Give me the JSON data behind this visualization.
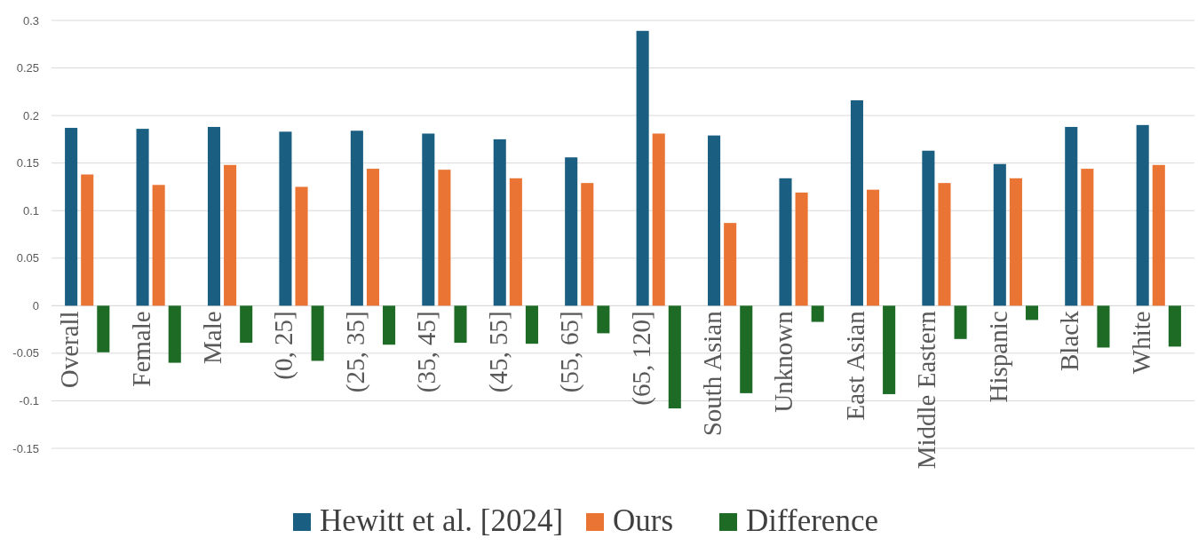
{
  "chart_data": {
    "type": "bar",
    "categories": [
      "Overall",
      "Female",
      "Male",
      "(0, 25]",
      "(25, 35]",
      "(35, 45]",
      "(45, 55]",
      "(55, 65]",
      "(65, 120]",
      "South Asian",
      "Unknown",
      "East Asian",
      "Middle Eastern",
      "Hispanic",
      "Black",
      "White"
    ],
    "series": [
      {
        "name": "Hewitt et al. [2024]",
        "color": "#1a5f82",
        "values": [
          0.187,
          0.186,
          0.188,
          0.183,
          0.184,
          0.181,
          0.175,
          0.156,
          0.289,
          0.179,
          0.134,
          0.216,
          0.163,
          0.149,
          0.188,
          0.19
        ]
      },
      {
        "name": "Ours",
        "color": "#e97434",
        "values": [
          0.138,
          0.127,
          0.148,
          0.125,
          0.144,
          0.143,
          0.134,
          0.129,
          0.181,
          0.087,
          0.119,
          0.122,
          0.129,
          0.134,
          0.144,
          0.148
        ]
      },
      {
        "name": "Difference",
        "color": "#1e6b26",
        "values": [
          -0.049,
          -0.06,
          -0.039,
          -0.058,
          -0.041,
          -0.039,
          -0.04,
          -0.029,
          -0.108,
          -0.092,
          -0.017,
          -0.093,
          -0.035,
          -0.015,
          -0.044,
          -0.043
        ]
      }
    ],
    "ylim": [
      -0.15,
      0.3
    ],
    "yticks": [
      {
        "value": -0.15,
        "label": "-0.15"
      },
      {
        "value": -0.1,
        "label": "-0.1"
      },
      {
        "value": -0.05,
        "label": "-0.05"
      },
      0,
      0.05,
      0.1,
      0.15,
      0.2,
      0.25,
      0.3
    ],
    "grid": "y",
    "legend": "bottom"
  }
}
